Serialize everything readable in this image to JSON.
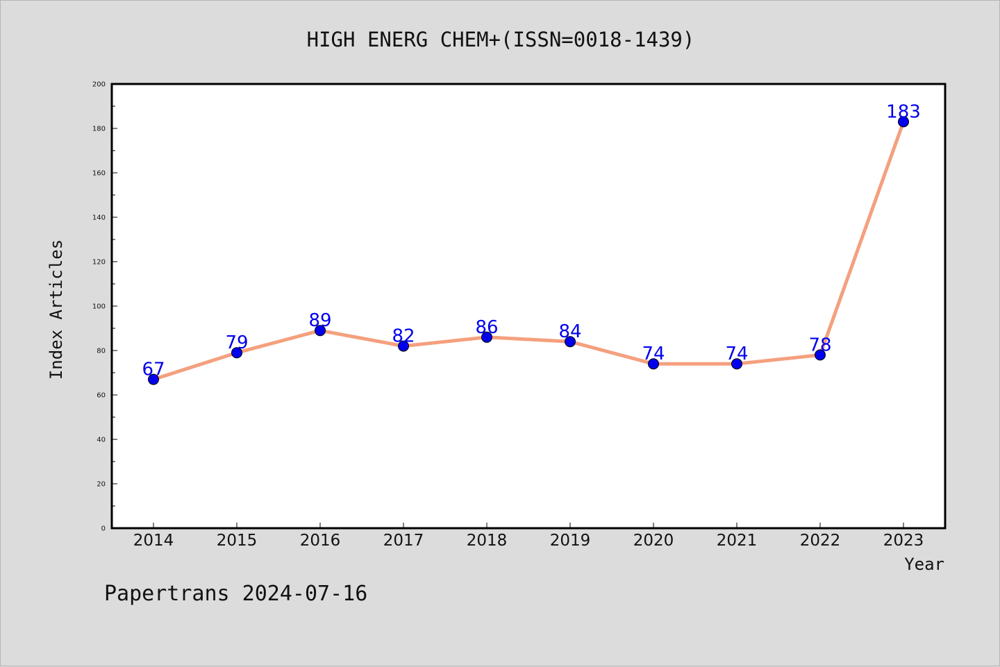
{
  "chart_data": {
    "type": "line",
    "title": "HIGH ENERG CHEM+(ISSN=0018-1439)",
    "xlabel": "Year",
    "ylabel": "Index Articles",
    "categories": [
      "2014",
      "2015",
      "2016",
      "2017",
      "2018",
      "2019",
      "2020",
      "2021",
      "2022",
      "2023"
    ],
    "series": [
      {
        "values": [
          67,
          79,
          89,
          82,
          86,
          84,
          74,
          74,
          78,
          183
        ]
      }
    ],
    "data_labels": [
      "67",
      "79",
      "89",
      "82",
      "86",
      "84",
      "74",
      "74",
      "78",
      "183"
    ],
    "ylim": [
      0,
      200
    ],
    "yticks": [
      0,
      20,
      40,
      60,
      80,
      100,
      120,
      140,
      160,
      180,
      200
    ],
    "yticks_minor": [
      10,
      30,
      50,
      70,
      90,
      110,
      130,
      150,
      170,
      190
    ],
    "grid": false,
    "colors": {
      "line": "#f4a07e",
      "marker": "#0000ee",
      "data_label": "#0000ee",
      "plot_background": "#ffffff",
      "figure_background": "#dcdcdc"
    }
  },
  "footer": "Papertrans 2024-07-16"
}
